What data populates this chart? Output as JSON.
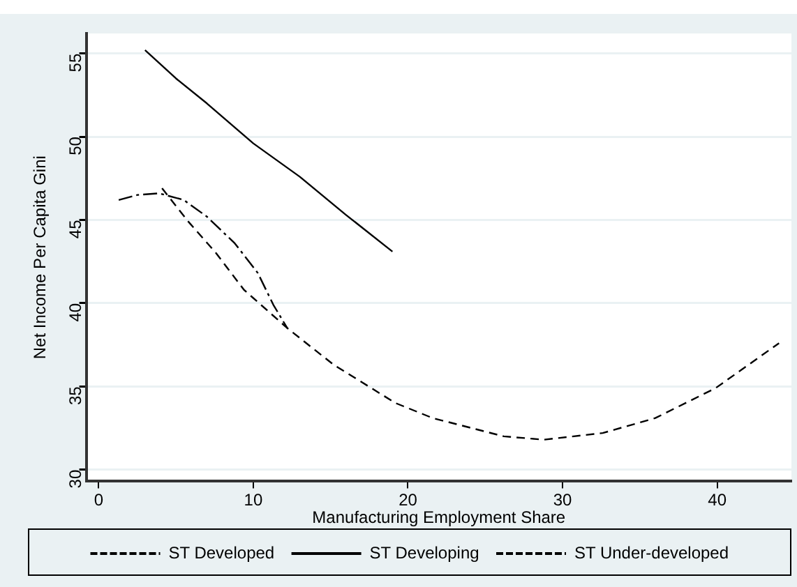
{
  "chart_data": {
    "type": "line",
    "xlabel": "Manufacturing Employment Share",
    "ylabel": "Net Income Per Capita Gini",
    "xlim": [
      -0.8,
      44.8
    ],
    "xticks": [
      0,
      10,
      20,
      30,
      40
    ],
    "ylim": [
      29.3,
      56.2
    ],
    "yticks": [
      30,
      35,
      40,
      45,
      50,
      55
    ],
    "grid": "y",
    "legend": "bottom",
    "marker": "none",
    "series": [
      {
        "name": "ST Developed",
        "color": "#000000",
        "line_style": "dashed",
        "x": [
          4.1,
          5.8,
          7.6,
          9.4,
          12.2,
          15.2,
          19.2,
          21.6,
          26.2,
          28.8,
          32.6,
          36,
          39.9,
          44
        ],
        "values": [
          46.9,
          44.9,
          43.0,
          40.8,
          38.5,
          36.3,
          34.0,
          33.1,
          32.0,
          31.8,
          32.2,
          33.1,
          34.9,
          37.6
        ]
      },
      {
        "name": "ST Developing",
        "color": "#000000",
        "line_style": "solid",
        "x": [
          3,
          5,
          7,
          10,
          13,
          16,
          19
        ],
        "values": [
          55.2,
          53.5,
          52.0,
          49.6,
          47.6,
          45.3,
          43.1
        ]
      },
      {
        "name": "ST Under-developed",
        "color": "#000000",
        "line_style": "dashdot",
        "x": [
          1.3,
          2.5,
          3.9,
          5.5,
          7,
          8.8,
          10.3,
          11.3,
          12.2
        ],
        "values": [
          46.2,
          46.5,
          46.6,
          46.2,
          45.2,
          43.6,
          41.8,
          39.9,
          38.5
        ]
      }
    ]
  }
}
